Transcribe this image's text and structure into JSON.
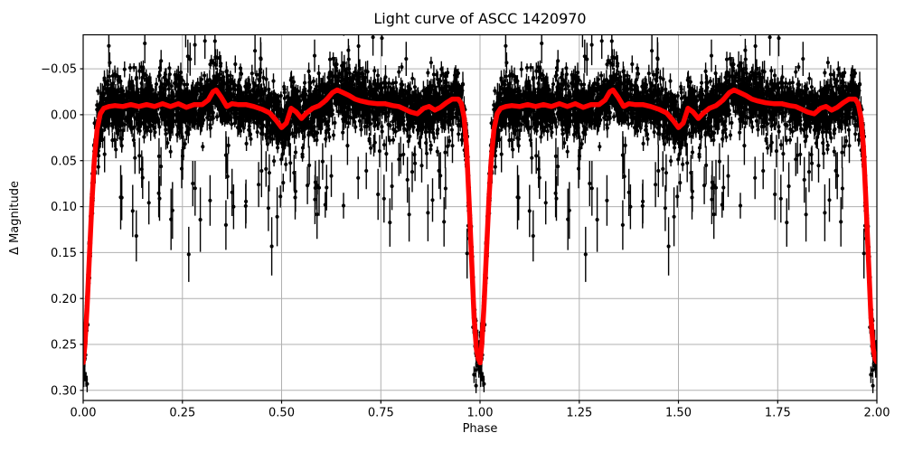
{
  "figure": {
    "title": "Light curve of ASCC 1420970"
  },
  "chart_data": {
    "type": "scatter",
    "title": "Light curve of ASCC 1420970",
    "xlabel": "Phase",
    "ylabel": "Δ Magnitude",
    "xlim": [
      0.0,
      2.0
    ],
    "ylim": [
      0.311,
      -0.087
    ],
    "y_axis_inverted": true,
    "grid": true,
    "legend": "none",
    "x_tick_values": [
      0.0,
      0.25,
      0.5,
      0.75,
      1.0,
      1.25,
      1.5,
      1.75,
      2.0
    ],
    "x_tick_labels": [
      "0.00",
      "0.25",
      "0.50",
      "0.75",
      "1.00",
      "1.25",
      "1.50",
      "1.75",
      "2.00"
    ],
    "y_tick_values": [
      -0.05,
      0.0,
      0.05,
      0.1,
      0.15,
      0.2,
      0.25,
      0.3
    ],
    "y_tick_labels": [
      "−0.05",
      "0.00",
      "0.05",
      "0.10",
      "0.15",
      "0.20",
      "0.25",
      "0.30"
    ],
    "colors": {
      "scatter": "#000000",
      "smoothed_curve": "#ff0000",
      "grid": "#b0b0b0",
      "axes": "#000000",
      "background": "#ffffff"
    },
    "series": [
      {
        "name": "photometric measurements",
        "type": "errorbar-scatter",
        "marker": "black-dot",
        "color": "#000000"
      },
      {
        "name": "smoothed light curve",
        "type": "line",
        "color": "#ff0000",
        "linewidth": 5.5
      }
    ],
    "phase_cycles_plotted": 2,
    "eclipses": {
      "primary": {
        "phase": 1.0,
        "depth_mag": 0.27
      },
      "secondary": {
        "phase": 0.5,
        "depth_mag": 0.015
      },
      "out_of_eclipse_mag": -0.01,
      "bumps": [
        {
          "phase": 0.335,
          "mag": -0.027
        },
        {
          "phase": 0.64,
          "mag": -0.027
        }
      ]
    },
    "smoothed_curve_cycle": [
      [
        0.0,
        0.27
      ],
      [
        0.004,
        0.252
      ],
      [
        0.01,
        0.208
      ],
      [
        0.016,
        0.152
      ],
      [
        0.022,
        0.095
      ],
      [
        0.028,
        0.05
      ],
      [
        0.035,
        0.016
      ],
      [
        0.043,
        -0.001
      ],
      [
        0.052,
        -0.007
      ],
      [
        0.065,
        -0.009
      ],
      [
        0.08,
        -0.01
      ],
      [
        0.1,
        -0.009
      ],
      [
        0.12,
        -0.011
      ],
      [
        0.14,
        -0.009
      ],
      [
        0.16,
        -0.011
      ],
      [
        0.18,
        -0.009
      ],
      [
        0.2,
        -0.012
      ],
      [
        0.22,
        -0.009
      ],
      [
        0.24,
        -0.012
      ],
      [
        0.26,
        -0.008
      ],
      [
        0.28,
        -0.011
      ],
      [
        0.3,
        -0.011
      ],
      [
        0.315,
        -0.016
      ],
      [
        0.327,
        -0.025
      ],
      [
        0.335,
        -0.027
      ],
      [
        0.348,
        -0.019
      ],
      [
        0.362,
        -0.009
      ],
      [
        0.375,
        -0.012
      ],
      [
        0.39,
        -0.011
      ],
      [
        0.41,
        -0.011
      ],
      [
        0.43,
        -0.009
      ],
      [
        0.45,
        -0.006
      ],
      [
        0.47,
        -0.002
      ],
      [
        0.486,
        0.006
      ],
      [
        0.5,
        0.014
      ],
      [
        0.512,
        0.009
      ],
      [
        0.524,
        -0.007
      ],
      [
        0.537,
        -0.003
      ],
      [
        0.55,
        0.004
      ],
      [
        0.563,
        -0.002
      ],
      [
        0.578,
        -0.007
      ],
      [
        0.595,
        -0.01
      ],
      [
        0.612,
        -0.016
      ],
      [
        0.628,
        -0.024
      ],
      [
        0.64,
        -0.027
      ],
      [
        0.655,
        -0.024
      ],
      [
        0.67,
        -0.021
      ],
      [
        0.685,
        -0.017
      ],
      [
        0.7,
        -0.015
      ],
      [
        0.72,
        -0.013
      ],
      [
        0.74,
        -0.012
      ],
      [
        0.76,
        -0.012
      ],
      [
        0.78,
        -0.01
      ],
      [
        0.795,
        -0.009
      ],
      [
        0.81,
        -0.006
      ],
      [
        0.825,
        -0.003
      ],
      [
        0.842,
        -0.001
      ],
      [
        0.858,
        -0.007
      ],
      [
        0.872,
        -0.009
      ],
      [
        0.886,
        -0.005
      ],
      [
        0.9,
        -0.008
      ],
      [
        0.915,
        -0.013
      ],
      [
        0.93,
        -0.017
      ],
      [
        0.945,
        -0.017
      ],
      [
        0.953,
        -0.012
      ],
      [
        0.96,
        0.003
      ],
      [
        0.966,
        0.035
      ],
      [
        0.972,
        0.09
      ],
      [
        0.979,
        0.16
      ],
      [
        0.985,
        0.22
      ],
      [
        0.991,
        0.255
      ],
      [
        0.996,
        0.266
      ],
      [
        1.0,
        0.269
      ]
    ],
    "scatter_model": {
      "seed": 7,
      "n_points_per_cycle": 3000,
      "duplicated_each_cycle": true,
      "sigma_core": 0.013,
      "sigma_mid": 0.022,
      "sigma_wide": 0.038,
      "p_mid": 0.2,
      "p_wide": 0.05,
      "p_faint_tail": 0.025,
      "faint_tail_range": [
        0.03,
        0.13
      ],
      "errorbar_half_length_base": 0.0045
    },
    "outliers": [
      [
        0.266,
        0.152,
        0.03
      ],
      [
        0.497,
        0.089,
        0.012
      ],
      [
        0.504,
        0.074,
        0.01
      ],
      [
        0.59,
        0.077,
        0.01
      ],
      [
        0.61,
        0.098,
        0.014
      ],
      [
        0.656,
        0.099,
        0.014
      ],
      [
        0.004,
        0.282,
        0.008
      ],
      [
        0.007,
        0.288,
        0.008
      ],
      [
        0.01,
        0.293,
        0.009
      ],
      [
        0.985,
        0.283,
        0.009
      ],
      [
        0.99,
        0.295,
        0.008
      ]
    ]
  }
}
